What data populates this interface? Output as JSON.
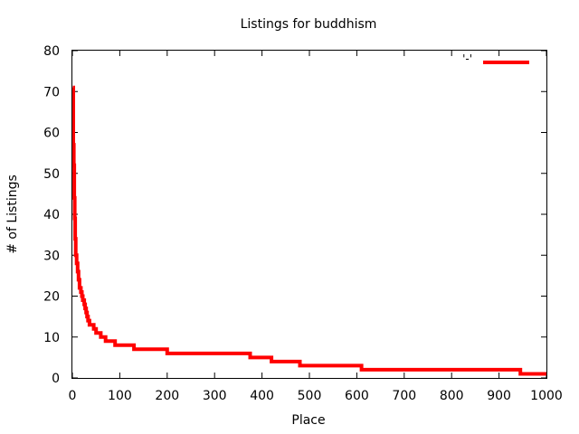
{
  "chart_data": {
    "type": "line",
    "title": "Listings for buddhism",
    "xlabel": "Place",
    "ylabel": "# of Listings",
    "xlim": [
      0,
      1000
    ],
    "ylim": [
      0,
      80
    ],
    "x_ticks": [
      "0",
      "100",
      "200",
      "300",
      "400",
      "500",
      "600",
      "700",
      "800",
      "900",
      "1000"
    ],
    "y_ticks": [
      "0",
      "10",
      "20",
      "30",
      "40",
      "50",
      "60",
      "70",
      "80"
    ],
    "grid": false,
    "legend": {
      "position": "top-right",
      "label": "'-'"
    },
    "series": [
      {
        "name": "'-'",
        "color": "#ff0000",
        "step": true,
        "points": [
          [
            1,
            71
          ],
          [
            2,
            57
          ],
          [
            3,
            52
          ],
          [
            4,
            44
          ],
          [
            5,
            39
          ],
          [
            6,
            34
          ],
          [
            7,
            30
          ],
          [
            9,
            28
          ],
          [
            11,
            26
          ],
          [
            13,
            24
          ],
          [
            15,
            22
          ],
          [
            18,
            21
          ],
          [
            20,
            20
          ],
          [
            22,
            19
          ],
          [
            25,
            18
          ],
          [
            27,
            17
          ],
          [
            29,
            16
          ],
          [
            31,
            15
          ],
          [
            33,
            14
          ],
          [
            36,
            13
          ],
          [
            45,
            12
          ],
          [
            50,
            11
          ],
          [
            60,
            10
          ],
          [
            70,
            9
          ],
          [
            90,
            8
          ],
          [
            130,
            7
          ],
          [
            200,
            6
          ],
          [
            375,
            5
          ],
          [
            420,
            4
          ],
          [
            480,
            3
          ],
          [
            610,
            2
          ],
          [
            945,
            1
          ],
          [
            1000,
            1
          ]
        ]
      }
    ]
  }
}
